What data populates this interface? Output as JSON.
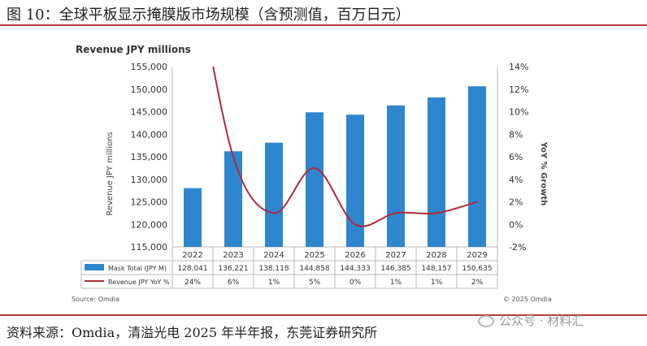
{
  "figure": {
    "title": "图 10：全球平板显示掩膜版市场规模（含预测值，百万日元）",
    "source": "资料来源：Omdia，清溢光电 2025 年半年报，东莞证券研究所",
    "watermark": "公众号 · 材料汇"
  },
  "chart_data": {
    "type": "bar",
    "title": "Revenue JPY millions",
    "ylabel": "Revenue JPY millions",
    "y2label": "YoY % Growth",
    "categories": [
      "2022",
      "2023",
      "2024",
      "2025",
      "2026",
      "2027",
      "2028",
      "2029"
    ],
    "ylim": [
      115000,
      155000
    ],
    "yticks": [
      "115,000",
      "120,000",
      "125,000",
      "130,000",
      "135,000",
      "140,000",
      "145,000",
      "150,000",
      "155,000"
    ],
    "y2lim": [
      -2,
      14
    ],
    "y2ticks": [
      "-2%",
      "0%",
      "2%",
      "4%",
      "6%",
      "8%",
      "10%",
      "12%",
      "14%"
    ],
    "grid": false,
    "series": [
      {
        "name": "Mask Total (JPY M)",
        "type": "bar",
        "axis": "left",
        "color": "#2e86cf",
        "values": [
          128041,
          136221,
          138118,
          144858,
          144333,
          146385,
          148157,
          150635
        ],
        "labels": [
          "128,041",
          "136,221",
          "138,118",
          "144,858",
          "144,333",
          "146,385",
          "148,157",
          "150,635"
        ]
      },
      {
        "name": "Revenue JPY YoY %",
        "type": "line",
        "axis": "right",
        "color": "#b22a3a",
        "values": [
          24,
          6,
          1,
          5,
          0,
          1,
          1,
          2
        ],
        "labels": [
          "24%",
          "6%",
          "1%",
          "5%",
          "0%",
          "1%",
          "1%",
          "2%"
        ]
      }
    ],
    "source_note": "Source: Omdia",
    "copyright_note": "© 2025 Omdia"
  }
}
